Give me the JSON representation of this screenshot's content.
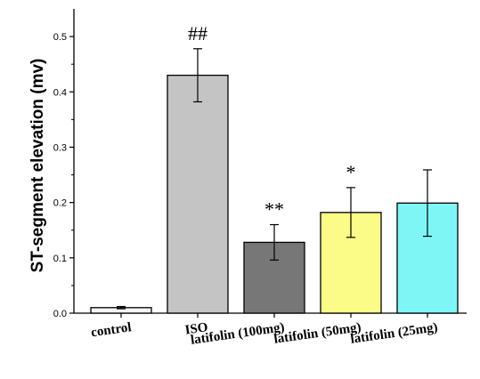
{
  "chart_data": {
    "type": "bar",
    "ylabel": "ST-segment elevation (mv)",
    "xlabel": "",
    "categories": [
      "control",
      "ISO",
      "latifolin (100mg)",
      "latifolin (50mg)",
      "latifolin (25mg)"
    ],
    "values": [
      0.01,
      0.43,
      0.128,
      0.182,
      0.199
    ],
    "errors": [
      0.002,
      0.048,
      0.032,
      0.045,
      0.06
    ],
    "annotations": [
      "",
      "##",
      "**",
      "*",
      ""
    ],
    "colors": [
      "#f4f4f4",
      "#c4c4c4",
      "#777777",
      "#fbfb88",
      "#7ff6f6"
    ],
    "yticks": [
      "0.0",
      "0.1",
      "0.2",
      "0.3",
      "0.4",
      "0.5"
    ],
    "ylim": [
      0,
      0.55
    ],
    "grid": false
  }
}
